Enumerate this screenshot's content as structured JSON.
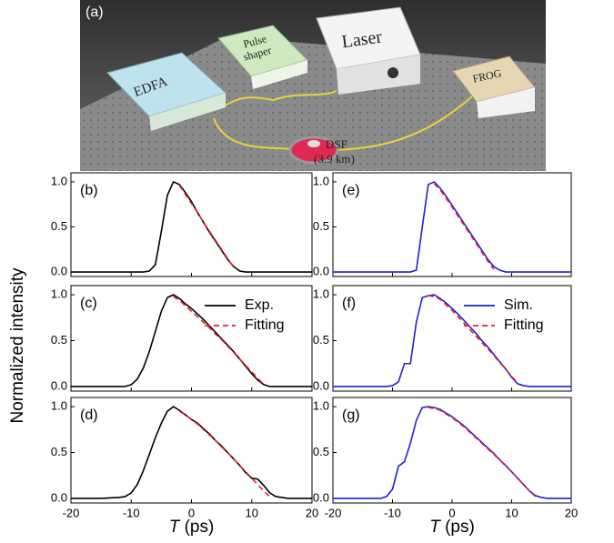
{
  "setup": {
    "label": "(a)",
    "edfa": "EDFA",
    "pulse_shaper": [
      "Pulse",
      "shaper"
    ],
    "laser": "Laser",
    "frog": "FROG",
    "fiber": "DSF",
    "fiber_length": "(3.9 km)"
  },
  "y_label": "Normalized intensity",
  "x_label": "T (ps)",
  "chart_data": [
    {
      "type": "line",
      "panel_label": "(b)",
      "xlim": [
        -20,
        20
      ],
      "xticks": [
        -20,
        -10,
        0,
        10,
        20
      ],
      "ylim": [
        -0.05,
        1.1
      ],
      "yticks": [
        {
          "value": 0,
          "label": "0.0"
        },
        {
          "value": 0.5,
          "label": "0.5"
        },
        {
          "value": 1,
          "label": "1.0"
        }
      ],
      "x": [
        -20,
        -15,
        -12,
        -11,
        -10,
        -9,
        -8,
        -7,
        -6,
        -5,
        -4,
        -3,
        -2,
        -1,
        0,
        1,
        2,
        3,
        4,
        5,
        6,
        7,
        8,
        9,
        10,
        11,
        12,
        13,
        14,
        15,
        16,
        20
      ],
      "series": [
        {
          "color": "#000000",
          "style": "solid",
          "values": [
            0,
            0,
            0,
            0,
            0,
            0,
            0,
            0.01,
            0.08,
            0.45,
            0.85,
            1.0,
            0.97,
            0.88,
            0.78,
            0.66,
            0.55,
            0.44,
            0.34,
            0.24,
            0.14,
            0.06,
            0.01,
            0,
            0,
            0,
            0,
            0,
            0,
            0,
            0,
            0
          ]
        },
        {
          "color": "#e8202a",
          "style": "dashed",
          "values": [
            null,
            null,
            null,
            null,
            null,
            null,
            null,
            null,
            null,
            null,
            null,
            null,
            0.96,
            0.86,
            0.76,
            0.66,
            0.55,
            0.45,
            0.35,
            0.25,
            0.15,
            0.05,
            null,
            null,
            null,
            null,
            null,
            null,
            null,
            null,
            null,
            null
          ]
        }
      ]
    },
    {
      "type": "line",
      "panel_label": "(c)",
      "xlim": [
        -20,
        20
      ],
      "xticks": [
        -20,
        -10,
        0,
        10,
        20
      ],
      "ylim": [
        -0.05,
        1.1
      ],
      "yticks": [
        {
          "value": 0,
          "label": "0.0"
        },
        {
          "value": 0.5,
          "label": "0.5"
        },
        {
          "value": 1,
          "label": "1.0"
        }
      ],
      "legend": "upper right",
      "x": [
        -20,
        -15,
        -12,
        -11,
        -10,
        -9,
        -8,
        -7,
        -6,
        -5,
        -4,
        -3,
        -2,
        -1,
        0,
        1,
        2,
        3,
        4,
        5,
        6,
        7,
        8,
        9,
        10,
        11,
        12,
        13,
        14,
        15,
        16,
        20
      ],
      "series": [
        {
          "name": "Exp.",
          "color": "#000000",
          "style": "solid",
          "values": [
            0,
            0,
            0,
            0,
            0.02,
            0.08,
            0.2,
            0.38,
            0.6,
            0.82,
            0.97,
            1.0,
            0.96,
            0.9,
            0.85,
            0.79,
            0.73,
            0.66,
            0.59,
            0.52,
            0.45,
            0.38,
            0.3,
            0.22,
            0.14,
            0.07,
            0.02,
            0,
            0,
            0,
            0,
            0
          ]
        },
        {
          "name": "Fitting",
          "color": "#e8202a",
          "style": "dashed",
          "values": [
            null,
            null,
            null,
            null,
            null,
            null,
            null,
            null,
            null,
            null,
            null,
            0.98,
            0.94,
            0.88,
            0.82,
            0.76,
            0.7,
            0.64,
            0.57,
            0.51,
            0.44,
            0.37,
            0.3,
            0.23,
            0.16,
            0.09,
            0.02,
            null,
            null,
            null,
            null,
            null
          ]
        }
      ]
    },
    {
      "type": "line",
      "panel_label": "(d)",
      "xlim": [
        -20,
        20
      ],
      "xticks": [
        -20,
        -10,
        0,
        10,
        20
      ],
      "ylim": [
        -0.05,
        1.1
      ],
      "yticks": [
        {
          "value": 0,
          "label": "0.0"
        },
        {
          "value": 0.5,
          "label": "0.5"
        },
        {
          "value": 1,
          "label": "1.0"
        }
      ],
      "x": [
        -20,
        -15,
        -12,
        -11,
        -10,
        -9,
        -8,
        -7,
        -6,
        -5,
        -4,
        -3,
        -2,
        -1,
        0,
        1,
        2,
        3,
        4,
        5,
        6,
        7,
        8,
        9,
        10,
        11,
        12,
        13,
        14,
        15,
        16,
        20
      ],
      "series": [
        {
          "color": "#000000",
          "style": "solid",
          "values": [
            0,
            0,
            0.01,
            0.02,
            0.06,
            0.15,
            0.3,
            0.48,
            0.66,
            0.82,
            0.95,
            1.0,
            0.96,
            0.91,
            0.86,
            0.82,
            0.76,
            0.7,
            0.63,
            0.57,
            0.5,
            0.43,
            0.36,
            0.28,
            0.22,
            0.21,
            0.14,
            0.06,
            0.02,
            0.01,
            0,
            0
          ]
        },
        {
          "color": "#e8202a",
          "style": "dashed",
          "values": [
            null,
            null,
            null,
            null,
            null,
            null,
            null,
            null,
            null,
            null,
            null,
            null,
            0.95,
            0.91,
            0.86,
            0.81,
            0.75,
            0.69,
            0.63,
            0.56,
            0.5,
            0.43,
            0.36,
            0.29,
            0.22,
            0.15,
            0.08,
            0.02,
            null,
            null,
            null,
            null
          ]
        }
      ]
    },
    {
      "type": "line",
      "panel_label": "(e)",
      "xlim": [
        -20,
        20
      ],
      "xticks": [
        -20,
        -10,
        0,
        10,
        20
      ],
      "ylim": [
        -0.05,
        1.1
      ],
      "yticks": [
        {
          "value": 0,
          "label": "0.0"
        },
        {
          "value": 0.5,
          "label": "0.5"
        },
        {
          "value": 1,
          "label": "1.0"
        }
      ],
      "x": [
        -20,
        -15,
        -12,
        -11,
        -10,
        -9,
        -8,
        -7,
        -6,
        -5,
        -4,
        -3,
        -2,
        -1,
        0,
        1,
        2,
        3,
        4,
        5,
        6,
        7,
        8,
        9,
        10,
        11,
        12,
        13,
        14,
        15,
        16,
        20
      ],
      "series": [
        {
          "color": "#1f1fd6",
          "style": "solid",
          "values": [
            0,
            0,
            0,
            0,
            0,
            0,
            0,
            0,
            0.02,
            0.5,
            0.97,
            1.0,
            0.93,
            0.84,
            0.74,
            0.64,
            0.54,
            0.44,
            0.34,
            0.24,
            0.14,
            0.06,
            0.02,
            0,
            0,
            0,
            0,
            0,
            0,
            0,
            0,
            0
          ]
        },
        {
          "color": "#e8202a",
          "style": "dashed",
          "values": [
            null,
            null,
            null,
            null,
            null,
            null,
            null,
            null,
            null,
            null,
            null,
            0.98,
            0.91,
            0.82,
            0.72,
            0.62,
            0.52,
            0.42,
            0.32,
            0.22,
            0.12,
            0.03,
            null,
            null,
            null,
            null,
            null,
            null,
            null,
            null,
            null,
            null
          ]
        }
      ]
    },
    {
      "type": "line",
      "panel_label": "(f)",
      "xlim": [
        -20,
        20
      ],
      "xticks": [
        -20,
        -10,
        0,
        10,
        20
      ],
      "ylim": [
        -0.05,
        1.1
      ],
      "yticks": [
        {
          "value": 0,
          "label": "0.0"
        },
        {
          "value": 0.5,
          "label": "0.5"
        },
        {
          "value": 1,
          "label": "1.0"
        }
      ],
      "legend": "upper right",
      "x": [
        -20,
        -15,
        -12,
        -11,
        -10,
        -9,
        -8,
        -7,
        -6,
        -5,
        -4,
        -3,
        -2,
        -1,
        0,
        1,
        2,
        3,
        4,
        5,
        6,
        7,
        8,
        9,
        10,
        11,
        12,
        13,
        14,
        15,
        16,
        20
      ],
      "series": [
        {
          "name": "Sim.",
          "color": "#1f1fd6",
          "style": "solid",
          "values": [
            0,
            0,
            0,
            0,
            0.01,
            0.05,
            0.25,
            0.25,
            0.7,
            0.97,
            0.99,
            1.0,
            0.96,
            0.91,
            0.85,
            0.79,
            0.72,
            0.65,
            0.58,
            0.5,
            0.43,
            0.35,
            0.27,
            0.19,
            0.1,
            0.03,
            0.01,
            0,
            0,
            0,
            0,
            0
          ]
        },
        {
          "name": "Fitting",
          "color": "#e8202a",
          "style": "dashed",
          "values": [
            null,
            null,
            null,
            null,
            null,
            null,
            null,
            null,
            null,
            null,
            0.99,
            0.98,
            0.95,
            0.89,
            0.83,
            0.76,
            0.69,
            0.62,
            0.55,
            0.48,
            0.41,
            0.34,
            0.26,
            0.19,
            0.11,
            0.04,
            null,
            null,
            null,
            null,
            null,
            null
          ]
        }
      ]
    },
    {
      "type": "line",
      "panel_label": "(g)",
      "xlim": [
        -20,
        20
      ],
      "xticks": [
        -20,
        -10,
        0,
        10,
        20
      ],
      "ylim": [
        -0.05,
        1.1
      ],
      "yticks": [
        {
          "value": 0,
          "label": "0.0"
        },
        {
          "value": 0.5,
          "label": "0.5"
        },
        {
          "value": 1,
          "label": "1.0"
        }
      ],
      "x": [
        -20,
        -15,
        -12,
        -11,
        -10,
        -9,
        -8,
        -7,
        -6,
        -5,
        -4,
        -3,
        -2,
        -1,
        0,
        1,
        2,
        3,
        4,
        5,
        6,
        7,
        8,
        9,
        10,
        11,
        12,
        13,
        14,
        15,
        16,
        20
      ],
      "series": [
        {
          "color": "#1f1fd6",
          "style": "solid",
          "values": [
            0,
            0,
            0,
            0.02,
            0.1,
            0.35,
            0.4,
            0.6,
            0.85,
            0.99,
            1.0,
            0.99,
            0.97,
            0.93,
            0.89,
            0.84,
            0.79,
            0.73,
            0.67,
            0.61,
            0.55,
            0.49,
            0.42,
            0.36,
            0.29,
            0.22,
            0.15,
            0.08,
            0.03,
            0.01,
            0,
            0
          ]
        },
        {
          "color": "#e8202a",
          "style": "dashed",
          "values": [
            null,
            null,
            null,
            null,
            null,
            null,
            null,
            null,
            null,
            null,
            0.99,
            0.98,
            0.96,
            0.92,
            0.88,
            0.83,
            0.78,
            0.72,
            0.66,
            0.6,
            0.54,
            0.48,
            0.42,
            0.35,
            0.29,
            0.22,
            0.15,
            0.08,
            0.02,
            null,
            null,
            null
          ]
        }
      ]
    }
  ]
}
